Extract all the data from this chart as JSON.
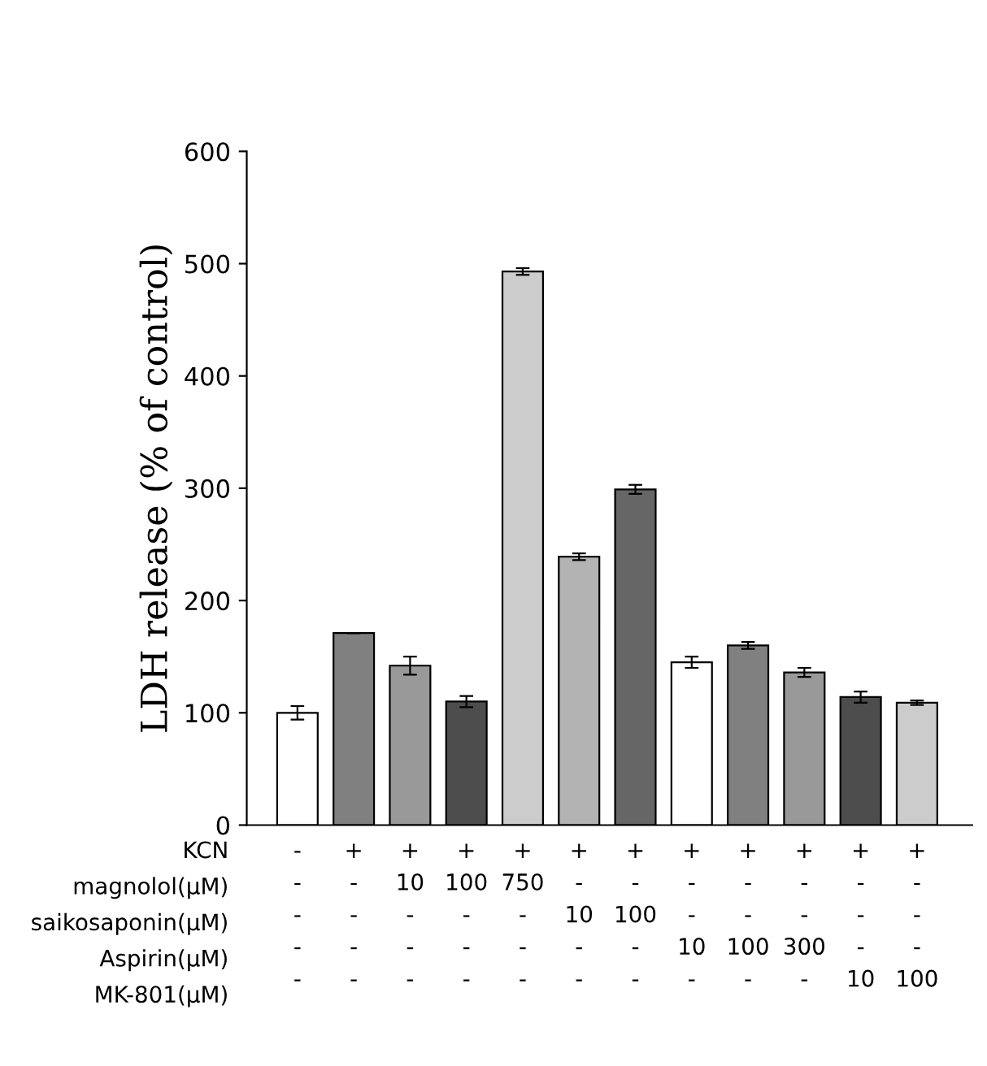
{
  "chart_data": {
    "type": "bar",
    "ylabel": "LDH release (% of control)",
    "categories": [
      "-\n-\n-\n-\n-",
      "+\n-\n-\n-\n-",
      "+\n10\n-\n-\n-",
      "+\n100\n-\n-\n-",
      "+\n750\n-\n-\n-",
      "+\n-\n10\n-\n-",
      "+\n-\n100\n-\n-",
      "+\n-\n-\n10\n-",
      "+\n-\n-\n100\n-",
      "+\n-\n-\n300\n-",
      "+\n-\n-\n-\n10",
      "+\n-\n-\n-\n100"
    ],
    "values": [
      100,
      171,
      142,
      110,
      493,
      239,
      299,
      145,
      160,
      136,
      114,
      109
    ],
    "errors": [
      6,
      null,
      8,
      5,
      3,
      3,
      4,
      5,
      3,
      4,
      5,
      2
    ],
    "colors": [
      "#ffffff",
      "#808080",
      "#999999",
      "#4d4d4d",
      "#cccccc",
      "#b3b3b3",
      "#666666",
      "#ffffff",
      "#808080",
      "#999999",
      "#4d4d4d",
      "#cccccc"
    ],
    "ylim": [
      0,
      600
    ],
    "yticks": [
      0,
      100,
      200,
      300,
      400,
      500,
      600
    ],
    "annotations": [
      "KCN",
      "magnolol(μM)",
      "saikosaponin(μM)",
      "Aspirin(μM)",
      "MK-801(μM)"
    ],
    "grid": false,
    "legend": false
  }
}
